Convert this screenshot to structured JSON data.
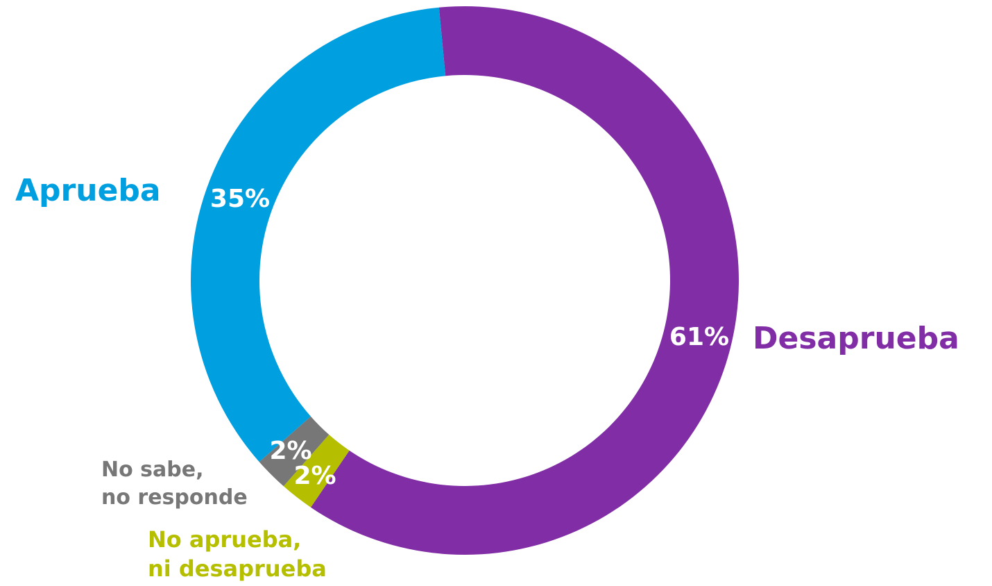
{
  "chart_data": {
    "type": "pie",
    "variant": "donut",
    "slices": [
      {
        "label": "Desaprueba",
        "value": 61,
        "value_label": "61%",
        "color": "#812DA5"
      },
      {
        "label": "No aprueba, ni desaprueba",
        "label_lines": [
          "No aprueba,",
          "ni desaprueba"
        ],
        "value": 2,
        "value_label": "2%",
        "color": "#B5BF00"
      },
      {
        "label": "No sabe, no responde",
        "label_lines": [
          "No sabe,",
          "no responde"
        ],
        "value": 2,
        "value_label": "2%",
        "color": "#777777"
      },
      {
        "label": "Aprueba",
        "value": 35,
        "value_label": "35%",
        "color": "#009FE0"
      }
    ],
    "legend": "none"
  }
}
